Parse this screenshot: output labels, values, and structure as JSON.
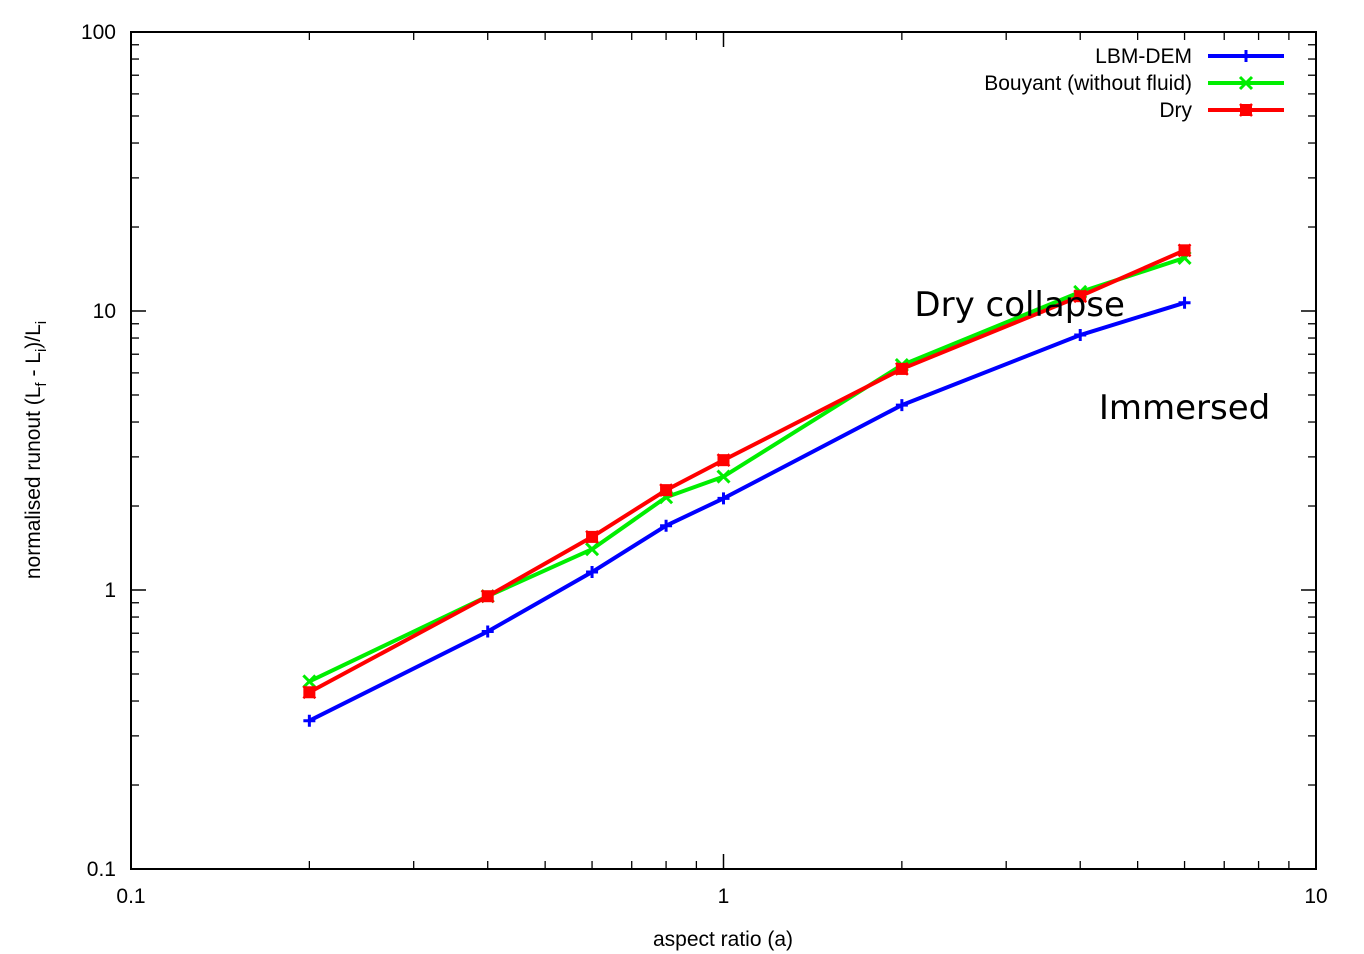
{
  "chart_data": {
    "type": "line",
    "title": "",
    "xlabel": "aspect ratio (a)",
    "ylabel": {
      "parts": [
        {
          "text": "normalised runout (L",
          "sub": false
        },
        {
          "text": "f",
          "sub": true
        },
        {
          "text": " - L",
          "sub": false
        },
        {
          "text": "i",
          "sub": true
        },
        {
          "text": ")/L",
          "sub": false
        },
        {
          "text": "i",
          "sub": true
        }
      ]
    },
    "xscale": "log",
    "yscale": "log",
    "xlim": [
      0.1,
      10
    ],
    "ylim": [
      0.1,
      100
    ],
    "xticks": [
      {
        "value": 0.1,
        "label": "0.1"
      },
      {
        "value": 1,
        "label": "1"
      },
      {
        "value": 10,
        "label": "10"
      }
    ],
    "yticks": [
      {
        "value": 0.1,
        "label": "0.1"
      },
      {
        "value": 1,
        "label": "1"
      },
      {
        "value": 10,
        "label": "10"
      },
      {
        "value": 100,
        "label": "100"
      }
    ],
    "grid": false,
    "legend_position": "top-right",
    "x": [
      0.2,
      0.4,
      0.6,
      0.8,
      1,
      2,
      4,
      6
    ],
    "series": [
      {
        "name": "LBM-DEM",
        "color": "#0000ff",
        "marker": "plus",
        "values": [
          0.34,
          0.71,
          1.16,
          1.7,
          2.13,
          4.6,
          8.2,
          10.7
        ]
      },
      {
        "name": "Bouyant (without fluid)",
        "color": "#00ee00",
        "marker": "cross",
        "values": [
          0.47,
          0.95,
          1.4,
          2.15,
          2.55,
          6.4,
          11.7,
          15.5
        ]
      },
      {
        "name": "Dry",
        "color": "#ff0000",
        "marker": "boxcross",
        "values": [
          0.43,
          0.95,
          1.55,
          2.28,
          2.92,
          6.2,
          11.3,
          16.5
        ]
      }
    ],
    "annotations": [
      {
        "text": "Dry collapse",
        "x": 2.1,
        "y": 9.6
      },
      {
        "text": "Immersed",
        "x": 4.3,
        "y": 4.1
      }
    ]
  }
}
